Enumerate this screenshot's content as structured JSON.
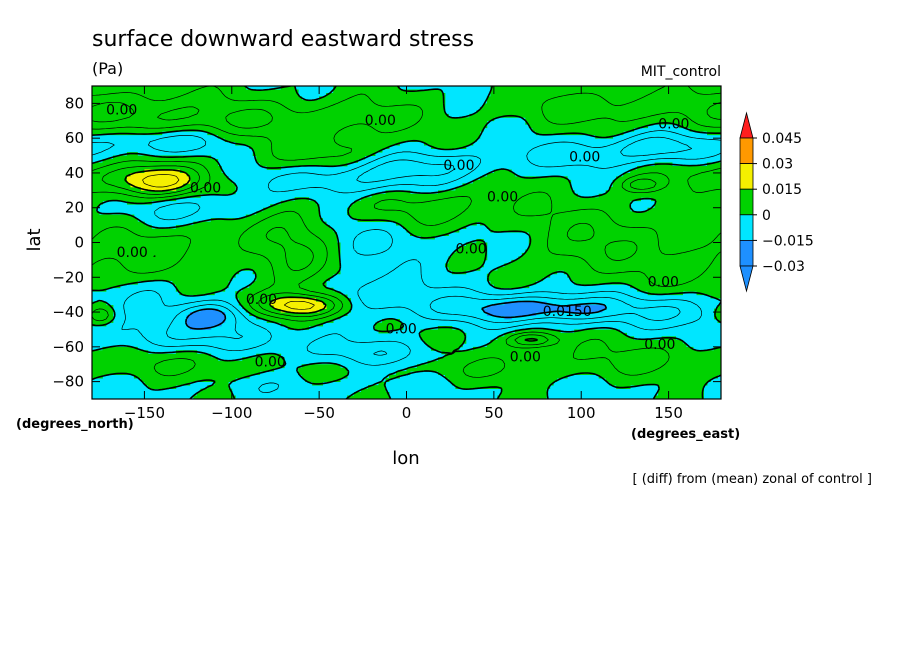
{
  "chart_data": {
    "type": "heatmap",
    "title": "surface downward eastward stress",
    "units": "(Pa)",
    "model": "MIT_control",
    "xlabel": "lon",
    "ylabel": "lat",
    "x_units": "(degrees_east)",
    "y_units": "(degrees_north)",
    "note": "[ (diff) from (mean) zonal of control ]",
    "xlim": [
      -180,
      180
    ],
    "ylim": [
      -90,
      90
    ],
    "x_ticks": [
      -150,
      -100,
      -50,
      0,
      50,
      100,
      150
    ],
    "x_tick_labels": [
      "−150",
      "−100",
      "−50",
      "0",
      "50",
      "100",
      "150"
    ],
    "y_ticks": [
      80,
      60,
      40,
      20,
      0,
      -20,
      -40,
      -60,
      -80
    ],
    "y_tick_labels": [
      "80",
      "60",
      "40",
      "20",
      "0",
      "−20",
      "−40",
      "−60",
      "−80"
    ],
    "levels": [
      -0.03,
      -0.015,
      0,
      0.015,
      0.03,
      0.045
    ],
    "level_labels": [
      "−0.03",
      "−0.015",
      "0",
      "0.015",
      "0.03",
      "0.045"
    ],
    "colors": [
      "#1e90ff",
      "#00e6ff",
      "#00d200",
      "#f5f000",
      "#ff9900",
      "#ff1e1e"
    ],
    "contour_labels": [
      {
        "text": "0.00",
        "lon": -163,
        "lat": 76
      },
      {
        "text": "0.00",
        "lon": -15,
        "lat": 70
      },
      {
        "text": "0.00",
        "lon": 153,
        "lat": 68
      },
      {
        "text": "0.00",
        "lon": 102,
        "lat": 49
      },
      {
        "text": "0.00",
        "lon": 30,
        "lat": 44
      },
      {
        "text": "0.00",
        "lon": 55,
        "lat": 26
      },
      {
        "text": "0.00",
        "lon": -115,
        "lat": 31
      },
      {
        "text": "0.00",
        "lon": -157,
        "lat": -6
      },
      {
        "text": "0.00",
        "lon": 37,
        "lat": -4
      },
      {
        "text": "0.00",
        "lon": 147,
        "lat": -23
      },
      {
        "text": "0.00",
        "lon": -83,
        "lat": -33
      },
      {
        "text": "0.0150",
        "lon": 92,
        "lat": -40
      },
      {
        "text": "0.00",
        "lon": -3,
        "lat": -50
      },
      {
        "text": "0.00",
        "lon": 145,
        "lat": -59
      },
      {
        "text": "0.00",
        "lon": 68,
        "lat": -66
      },
      {
        "text": "0.00",
        "lon": -78,
        "lat": -69
      }
    ]
  },
  "colorbar": {
    "labels": [
      "0.045",
      "0.03",
      "0.015",
      "0",
      "−0.015",
      "−0.03"
    ]
  }
}
